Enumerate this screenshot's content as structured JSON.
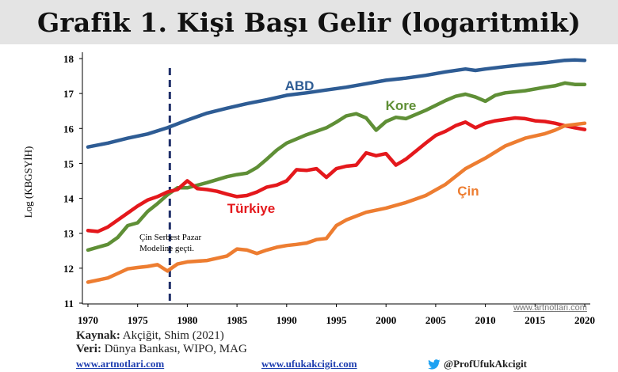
{
  "header": {
    "title": "Grafik 1. Kişi Başı Gelir (logaritmik)"
  },
  "chart_data": {
    "type": "line",
    "title": "Grafik 1. Kişi Başı Gelir (logaritmik)",
    "xlabel": "",
    "ylabel": "Log (KBGSYİH)",
    "xlim": [
      1970,
      2020
    ],
    "ylim": [
      11,
      18
    ],
    "xticks": [
      1970,
      1975,
      1980,
      1985,
      1990,
      1995,
      2000,
      2005,
      2010,
      2015,
      2020
    ],
    "yticks": [
      11,
      12,
      13,
      14,
      15,
      16,
      17,
      18
    ],
    "grid": false,
    "legend": "inline labels",
    "series": [
      {
        "name": "ABD",
        "color": "#2e5c94",
        "x": [
          1970,
          1972,
          1974,
          1976,
          1978,
          1980,
          1982,
          1984,
          1986,
          1988,
          1990,
          1992,
          1994,
          1996,
          1998,
          2000,
          2002,
          2004,
          2006,
          2008,
          2009,
          2010,
          2012,
          2014,
          2016,
          2018,
          2019,
          2020
        ],
        "y": [
          15.47,
          15.58,
          15.72,
          15.84,
          16.02,
          16.24,
          16.44,
          16.58,
          16.71,
          16.82,
          16.95,
          17.02,
          17.1,
          17.18,
          17.28,
          17.38,
          17.44,
          17.52,
          17.62,
          17.7,
          17.66,
          17.7,
          17.77,
          17.83,
          17.88,
          17.95,
          17.96,
          17.95
        ]
      },
      {
        "name": "Kore",
        "color": "#5f8f36",
        "x": [
          1970,
          1972,
          1973,
          1974,
          1975,
          1976,
          1977,
          1978,
          1979,
          1980,
          1982,
          1984,
          1985,
          1986,
          1987,
          1988,
          1989,
          1990,
          1992,
          1994,
          1995,
          1996,
          1997,
          1998,
          1999,
          2000,
          2001,
          2002,
          2004,
          2006,
          2007,
          2008,
          2009,
          2010,
          2011,
          2012,
          2014,
          2016,
          2017,
          2018,
          2019,
          2020
        ],
        "y": [
          12.52,
          12.68,
          12.88,
          13.22,
          13.3,
          13.62,
          13.85,
          14.1,
          14.3,
          14.3,
          14.45,
          14.62,
          14.68,
          14.72,
          14.88,
          15.12,
          15.38,
          15.58,
          15.82,
          16.02,
          16.18,
          16.36,
          16.42,
          16.3,
          15.95,
          16.2,
          16.32,
          16.28,
          16.52,
          16.8,
          16.92,
          16.98,
          16.9,
          16.78,
          16.95,
          17.02,
          17.08,
          17.18,
          17.22,
          17.3,
          17.26,
          17.26
        ]
      },
      {
        "name": "Türkiye",
        "color": "#e4181c",
        "x": [
          1970,
          1971,
          1972,
          1974,
          1975,
          1976,
          1977,
          1978,
          1979,
          1980,
          1981,
          1982,
          1983,
          1984,
          1985,
          1986,
          1987,
          1988,
          1989,
          1990,
          1991,
          1992,
          1993,
          1994,
          1995,
          1996,
          1997,
          1998,
          1999,
          2000,
          2001,
          2002,
          2003,
          2004,
          2005,
          2006,
          2007,
          2008,
          2009,
          2010,
          2011,
          2012,
          2013,
          2014,
          2015,
          2016,
          2017,
          2018,
          2019,
          2020
        ],
        "y": [
          13.08,
          13.05,
          13.18,
          13.58,
          13.78,
          13.95,
          14.05,
          14.18,
          14.25,
          14.5,
          14.28,
          14.25,
          14.2,
          14.12,
          14.05,
          14.08,
          14.18,
          14.32,
          14.38,
          14.5,
          14.82,
          14.8,
          14.85,
          14.6,
          14.85,
          14.92,
          14.95,
          15.3,
          15.22,
          15.28,
          14.95,
          15.12,
          15.35,
          15.58,
          15.8,
          15.92,
          16.08,
          16.18,
          16.02,
          16.15,
          16.22,
          16.26,
          16.3,
          16.28,
          16.22,
          16.2,
          16.15,
          16.08,
          16.02,
          15.97
        ]
      },
      {
        "name": "Çin",
        "color": "#ed7d31",
        "x": [
          1970,
          1972,
          1973,
          1974,
          1975,
          1976,
          1977,
          1978,
          1979,
          1980,
          1982,
          1984,
          1985,
          1986,
          1987,
          1988,
          1989,
          1990,
          1991,
          1992,
          1993,
          1994,
          1995,
          1996,
          1998,
          2000,
          2002,
          2004,
          2006,
          2008,
          2010,
          2012,
          2014,
          2016,
          2017,
          2018,
          2020
        ],
        "y": [
          11.6,
          11.72,
          11.85,
          11.98,
          12.02,
          12.05,
          12.1,
          11.92,
          12.12,
          12.18,
          12.22,
          12.35,
          12.55,
          12.52,
          12.42,
          12.52,
          12.6,
          12.65,
          12.68,
          12.72,
          12.82,
          12.85,
          13.22,
          13.38,
          13.6,
          13.72,
          13.88,
          14.08,
          14.4,
          14.85,
          15.15,
          15.5,
          15.72,
          15.85,
          15.95,
          16.08,
          16.15
        ]
      }
    ],
    "annotations": [
      {
        "x": 1978,
        "type": "dashed-vline",
        "color": "#1f2f6a",
        "text": "Çin Serbest Pazar Modeline geçti."
      }
    ]
  },
  "labels": {
    "abd": "ABD",
    "kore": "Kore",
    "turkiye": "Türkiye",
    "cin": "Çin",
    "annot_line1": "Çin Serbest Pazar",
    "annot_line2": "Modeline geçti."
  },
  "footer": {
    "source_label": "Kaynak:",
    "source_text": " Akçiğit, Shim (2021)",
    "data_label": "Veri:",
    "data_text": " Dünya Bankası, WIPO, MAG",
    "link1": "www.artnotlari.com",
    "link2": "www.ufukakcigit.com",
    "twitter": "@ProfUfukAkcigit",
    "watermark": "www.artnotlari.com"
  }
}
